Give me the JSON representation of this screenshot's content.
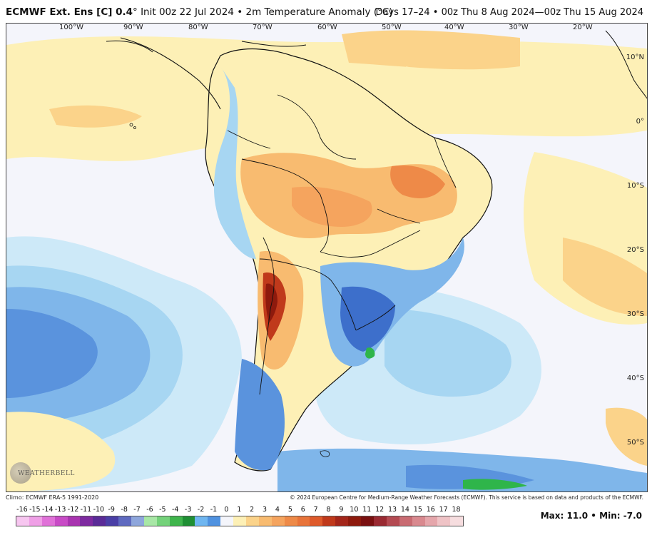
{
  "header": {
    "model": "ECMWF Ext. Ens [C] 0.4",
    "degree": "°",
    "init": "Init 00z 22 Jul 2024",
    "separator": "•",
    "variable": "2m Temperature Anomaly (°C)",
    "valid": "Days 17–24 • 00z Thu 8 Aug 2024—00z Thu 15 Aug 2024"
  },
  "map": {
    "longitude_labels": [
      "100°W",
      "90°W",
      "80°W",
      "70°W",
      "60°W",
      "50°W",
      "40°W",
      "30°W",
      "20°W"
    ],
    "latitude_labels": [
      "10°N",
      "0°",
      "10°S",
      "20°S",
      "30°S",
      "40°S",
      "50°S"
    ],
    "colors": {
      "neutral": "#f4f5fb",
      "light_warm": "#fdf0b6",
      "warm": "#fbd38a",
      "orange": "#f5a45e",
      "dark_orange": "#e8743a",
      "red": "#c0391b",
      "dark_red": "#8e1a0d",
      "light_cool": "#cde9f8",
      "cool": "#a7d6f2",
      "blue": "#7fb6ea",
      "mid_blue": "#5a93dd",
      "deep_blue": "#3d6fcb",
      "green": "#2fb54a",
      "land_border": "#111111"
    }
  },
  "footer": {
    "climo": "Climo: ECMWF ERA-5 1991-2020",
    "copyright": "© 2024 European Centre for Medium-Range Weather Forecasts (ECMWF). This service is based on data and products of the ECMWF.",
    "logo": "WEATHERBELL"
  },
  "colorbar": {
    "labels": [
      "-16",
      "-15",
      "-14",
      "-13",
      "-12",
      "-11",
      "-10",
      "-9",
      "-8",
      "-7",
      "-6",
      "-5",
      "-4",
      "-3",
      "-2",
      "-1",
      "0",
      "1",
      "2",
      "3",
      "4",
      "5",
      "6",
      "7",
      "8",
      "9",
      "10",
      "11",
      "12",
      "13",
      "14",
      "15",
      "16",
      "17",
      "18"
    ],
    "colors": [
      "#f7c6f0",
      "#ef9fe6",
      "#e071d8",
      "#c84bc6",
      "#a934b0",
      "#7e2aa0",
      "#5a2b97",
      "#4a3fa6",
      "#5f6ac0",
      "#8ea6dc",
      "#a8e7a6",
      "#74d27a",
      "#3fb54c",
      "#1f8f34",
      "#6fb6f0",
      "#4f92e0",
      "#f4f5fb",
      "#fdf0b6",
      "#fbd38a",
      "#f8bb70",
      "#f5a45e",
      "#ee8a48",
      "#e8743a",
      "#de5a2b",
      "#c0391b",
      "#a4261a",
      "#8e1a0d",
      "#7a1010",
      "#9a2a32",
      "#b44a52",
      "#c96b72",
      "#d9898f",
      "#e5a6ab",
      "#efc3c6",
      "#f6dddf"
    ],
    "max_label": "Max:",
    "max_value": "11.0",
    "min_label": "Min:",
    "min_value": "-7.0"
  }
}
